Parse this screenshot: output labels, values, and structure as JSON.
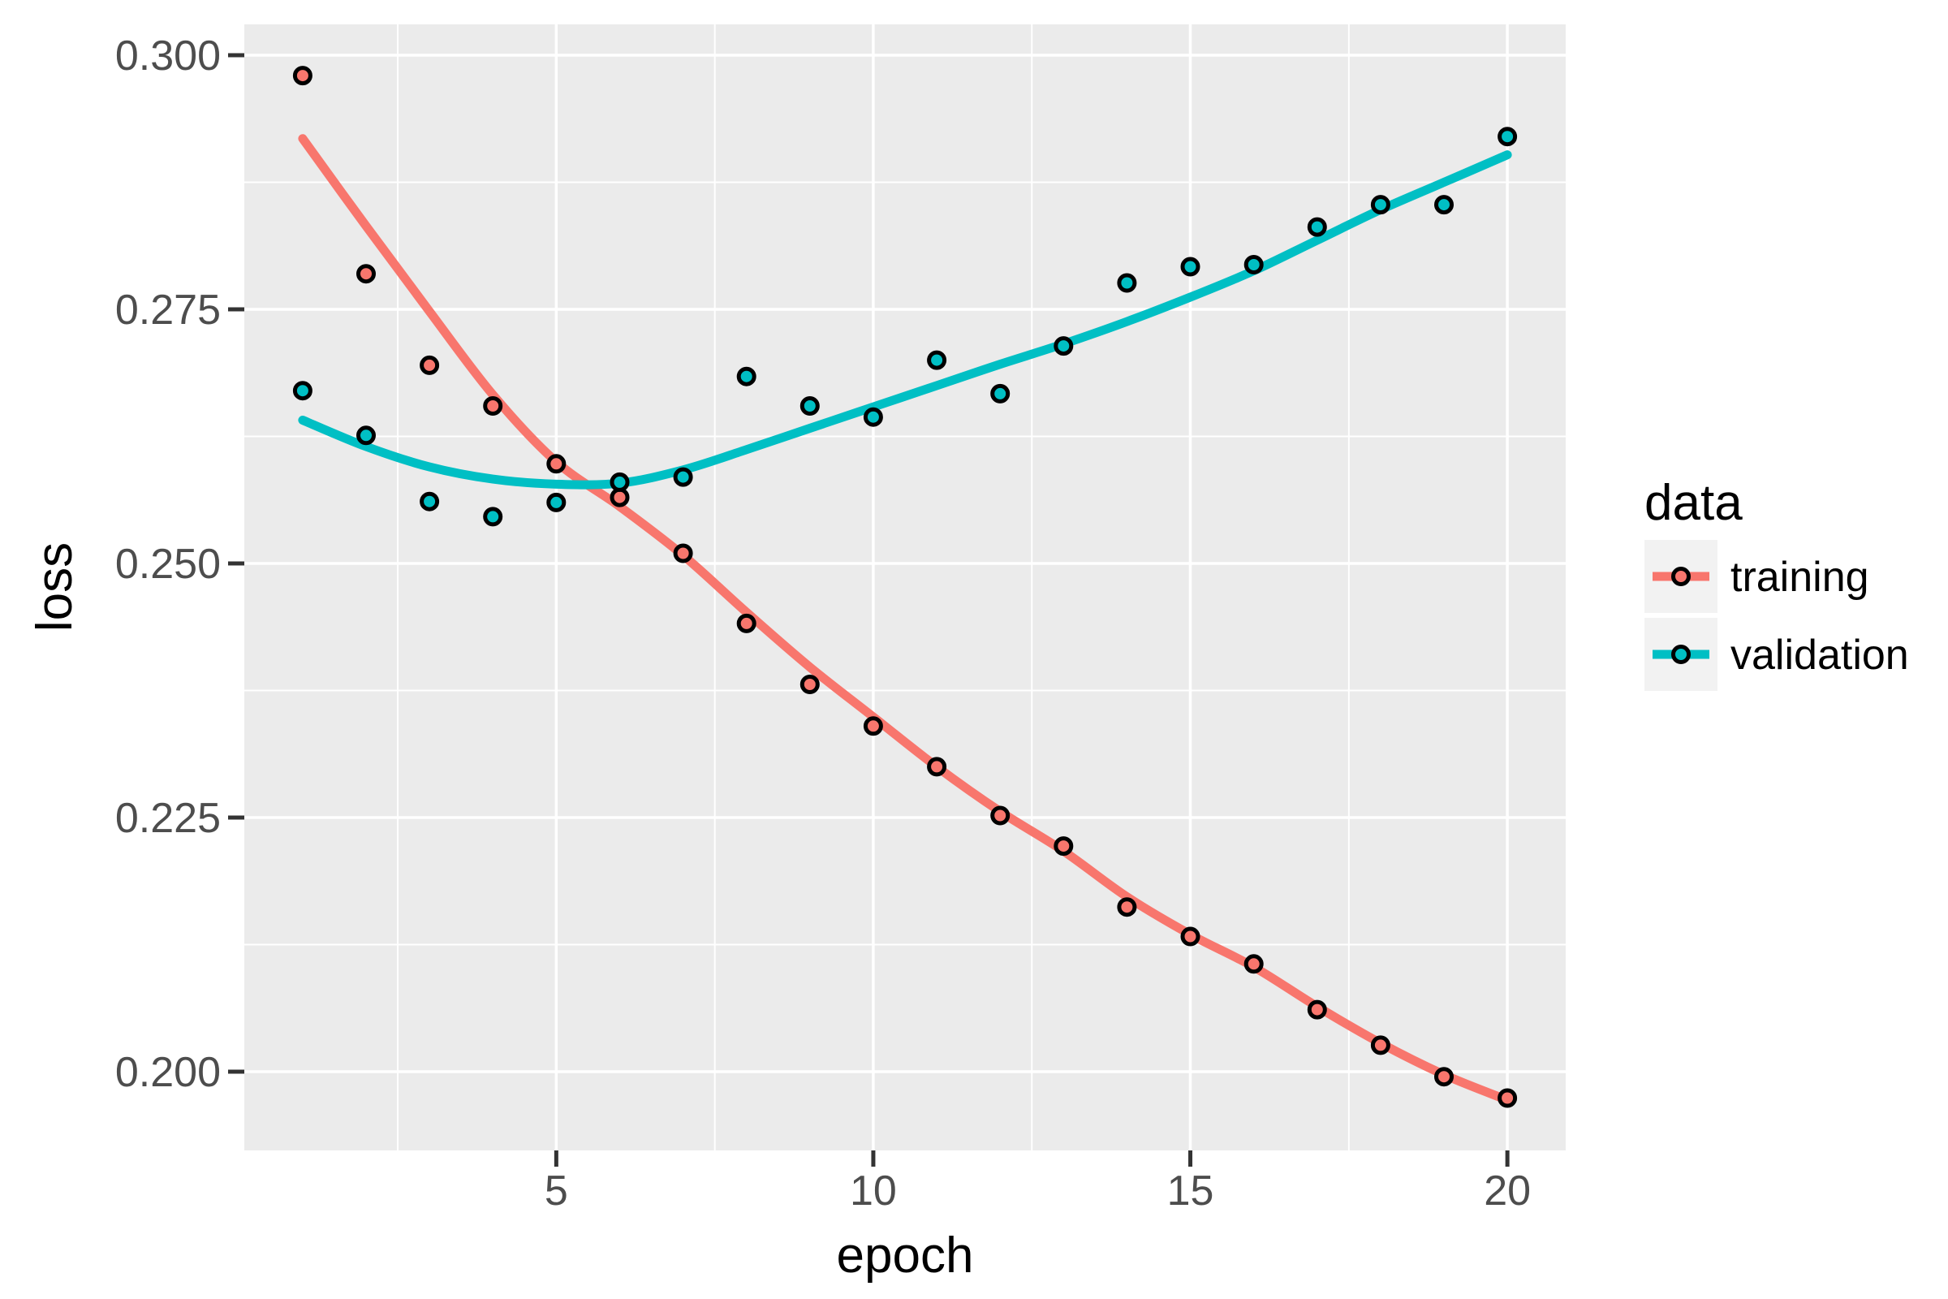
{
  "chart_data": {
    "type": "scatter",
    "title": "",
    "xlabel": "epoch",
    "ylabel": "loss",
    "x": [
      1,
      2,
      3,
      4,
      5,
      6,
      7,
      8,
      9,
      10,
      11,
      12,
      13,
      14,
      15,
      16,
      17,
      18,
      19,
      20
    ],
    "series": [
      {
        "name": "training",
        "color": "#F8766D",
        "values": [
          0.298,
          0.2785,
          0.2695,
          0.2655,
          0.2598,
          0.2565,
          0.251,
          0.2441,
          0.2381,
          0.234,
          0.23,
          0.2252,
          0.2222,
          0.2162,
          0.2133,
          0.2106,
          0.2061,
          0.2026,
          0.1995,
          0.1974
        ],
        "smooth": [
          0.2918,
          0.2832,
          0.2748,
          0.2666,
          0.26,
          0.2556,
          0.2508,
          0.2452,
          0.2398,
          0.2349,
          0.23,
          0.2256,
          0.2217,
          0.2172,
          0.2135,
          0.2103,
          0.2064,
          0.2028,
          0.1997,
          0.1972
        ]
      },
      {
        "name": "validation",
        "color": "#00BFC4",
        "values": [
          0.267,
          0.2626,
          0.2561,
          0.2546,
          0.256,
          0.258,
          0.2585,
          0.2684,
          0.2655,
          0.2644,
          0.27,
          0.2667,
          0.2714,
          0.2776,
          0.2792,
          0.2794,
          0.2831,
          0.2853,
          0.2853,
          0.292
        ],
        "smooth": [
          0.2641,
          0.2615,
          0.2595,
          0.2583,
          0.2578,
          0.2579,
          0.2592,
          0.2612,
          0.2633,
          0.2654,
          0.2675,
          0.2696,
          0.2716,
          0.2738,
          0.2762,
          0.2788,
          0.2818,
          0.2848,
          0.2875,
          0.2902
        ]
      }
    ],
    "x_breaks": [
      5,
      10,
      15,
      20
    ],
    "x_minor_breaks": [
      2.5,
      7.5,
      12.5,
      17.5
    ],
    "y_breaks": [
      0.2,
      0.225,
      0.25,
      0.275,
      0.3
    ],
    "y_minor_breaks": [
      0.2125,
      0.2375,
      0.2625,
      0.2875
    ],
    "xlim": [
      0.08,
      20.92
    ],
    "ylim": [
      0.19225,
      0.30304
    ],
    "grid": "on",
    "legend_position": "right"
  },
  "legend": {
    "title": "data",
    "entries": [
      {
        "label": "training",
        "color": "#F8766D"
      },
      {
        "label": "validation",
        "color": "#00BFC4"
      }
    ]
  },
  "axes": {
    "x_title": "epoch",
    "y_title": "loss",
    "x_tick_labels": [
      "5",
      "10",
      "15",
      "20"
    ],
    "y_tick_labels": [
      "0.200",
      "0.225",
      "0.250",
      "0.275",
      "0.300"
    ]
  },
  "colors": {
    "panel_background": "#EBEBEB",
    "gridline": "#FFFFFF",
    "legend_key_background": "#F2F2F2",
    "tick_mark": "#333333",
    "tick_label": "#4D4D4D",
    "axis_title": "#000000",
    "figure_background": "#FFFFFF"
  }
}
